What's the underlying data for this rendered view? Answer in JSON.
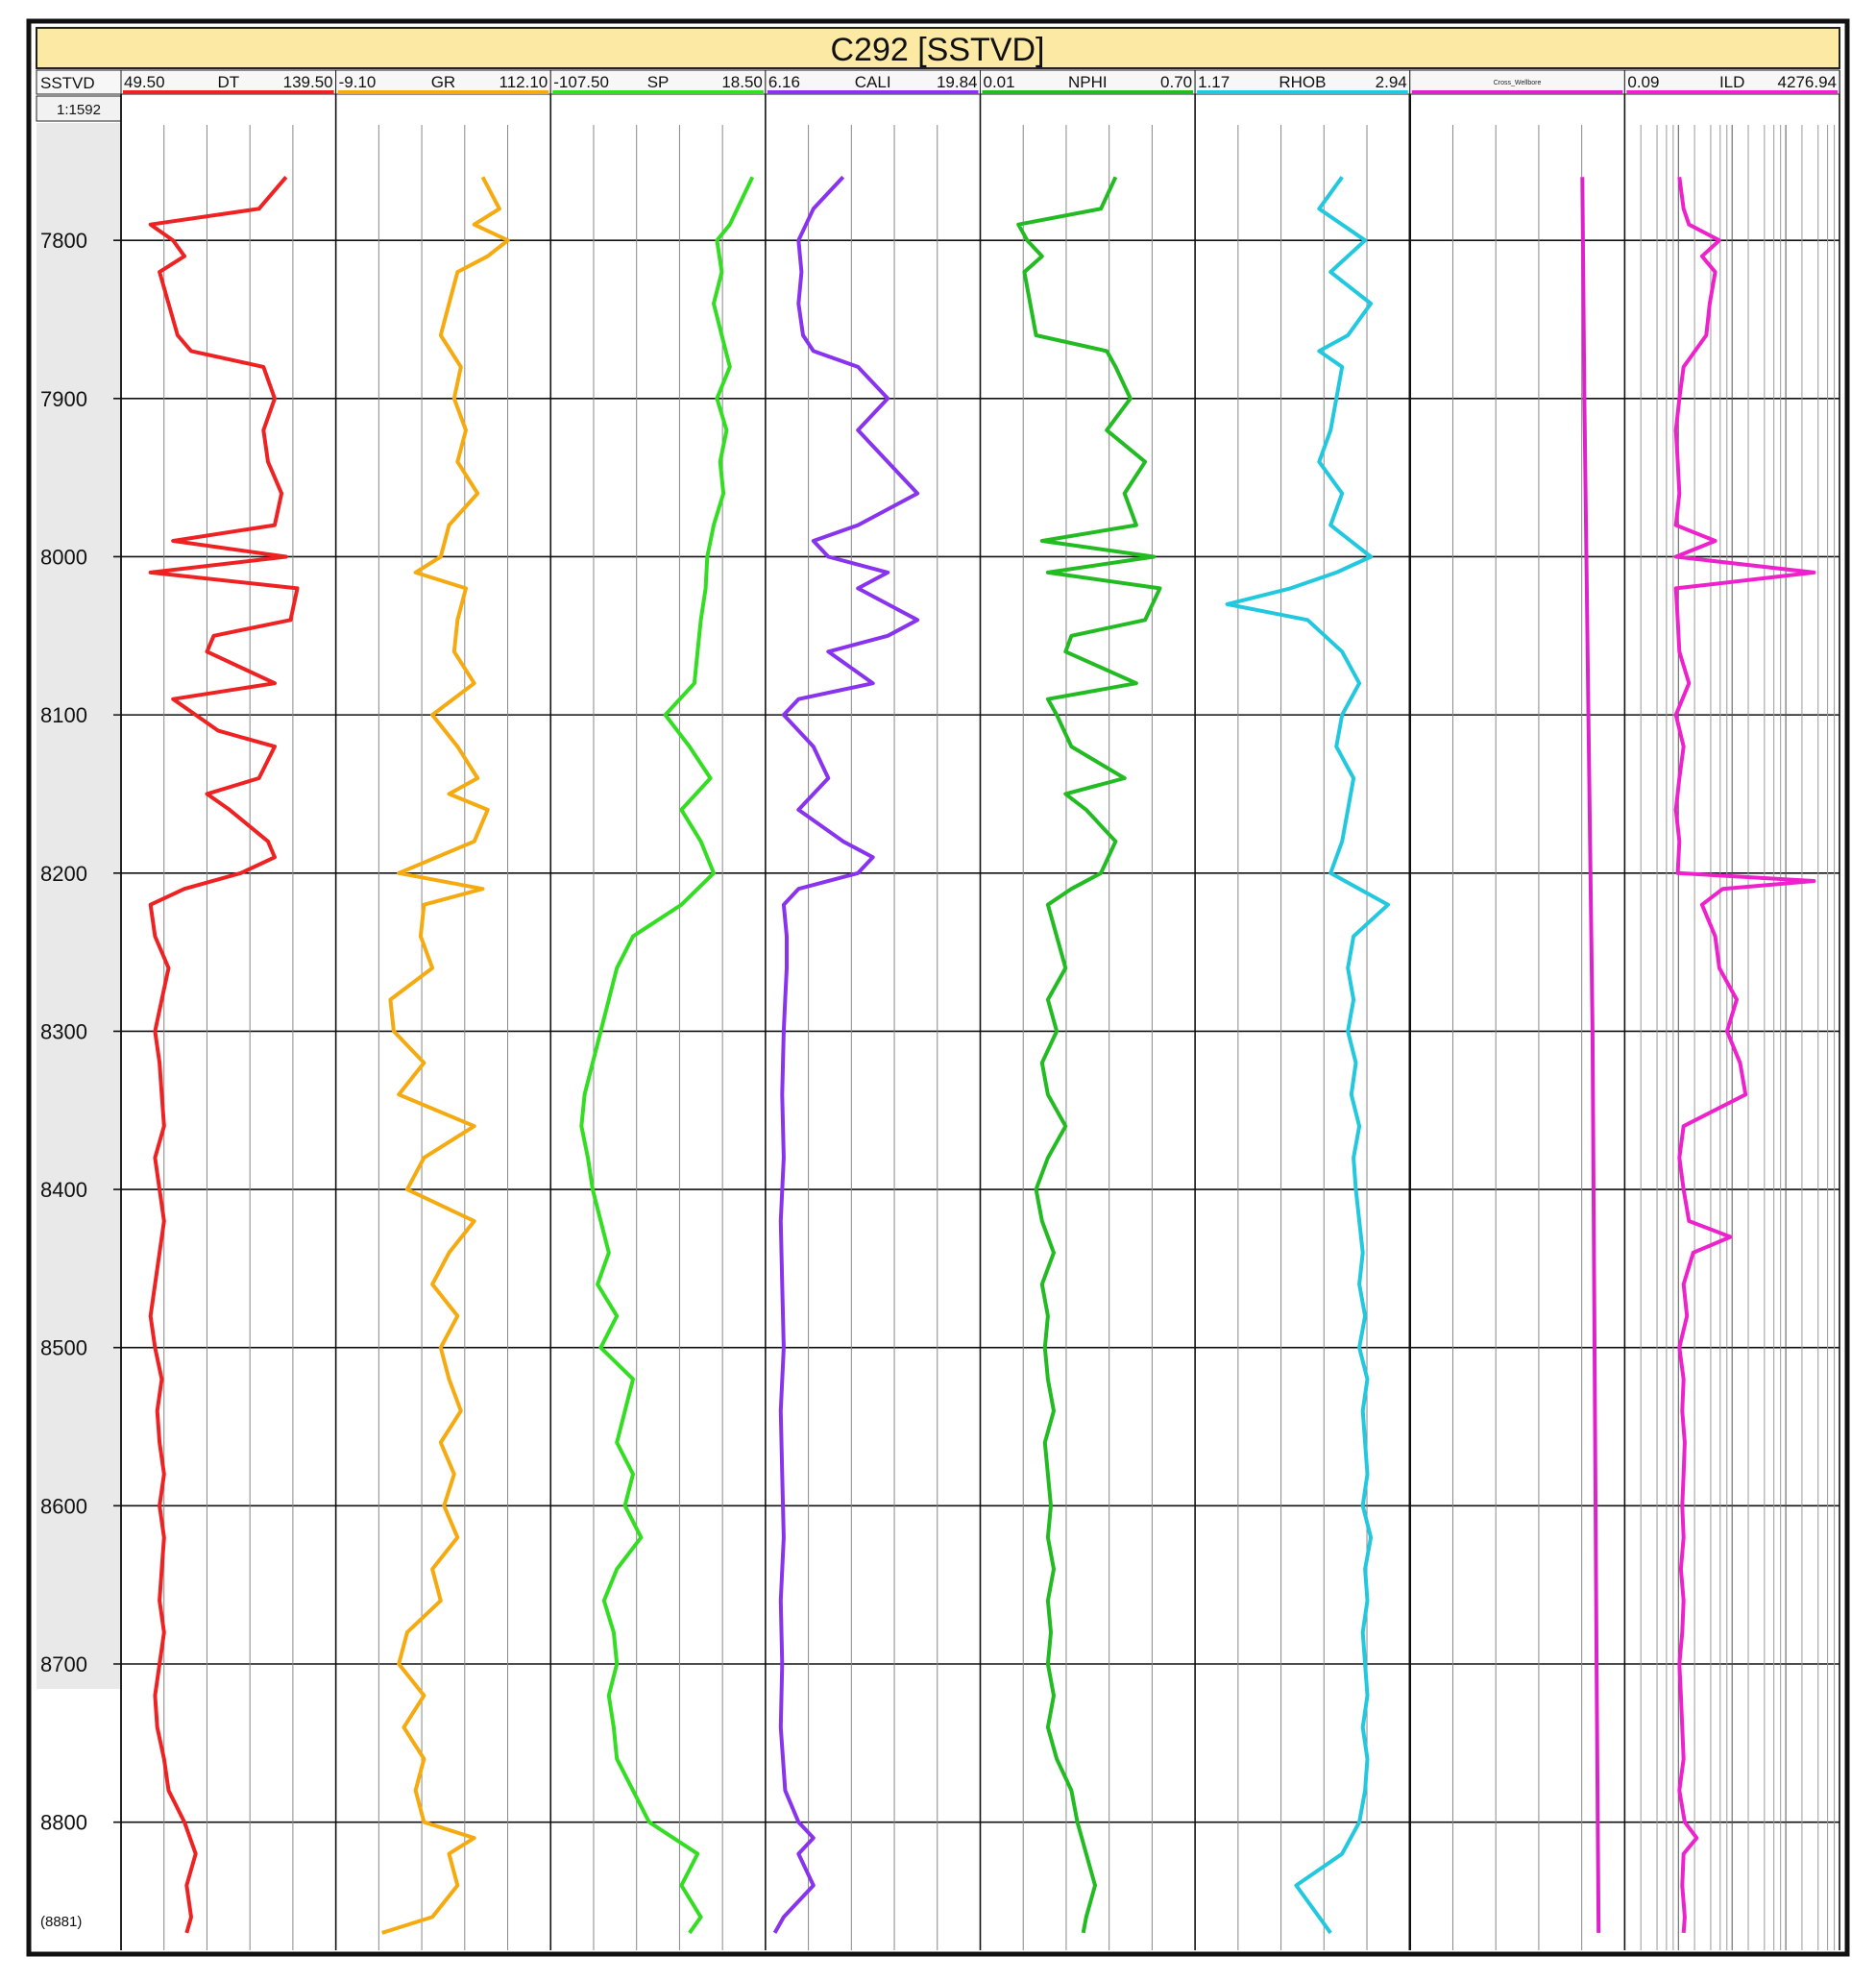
{
  "title": "C292 [SSTVD]",
  "depth_track": {
    "label": "SSTVD",
    "scale": "1:1592",
    "bottom_label": "(8881)",
    "ticks": [
      7800,
      7900,
      8000,
      8100,
      8200,
      8300,
      8400,
      8500,
      8600,
      8700,
      8800
    ]
  },
  "chart_data": {
    "type": "line",
    "title": "C292 [SSTVD]",
    "ylabel": "SSTVD",
    "ylim": [
      7727,
      8881
    ],
    "y_inverted": true,
    "grid": true,
    "tracks": [
      {
        "name": "DT",
        "min_label": "49.50",
        "max_label": "139.50",
        "min": 49.5,
        "max": 139.5,
        "color": "#ee2222",
        "scale": "linear",
        "depth": [
          7760,
          7780,
          7790,
          7800,
          7810,
          7820,
          7840,
          7860,
          7870,
          7880,
          7900,
          7920,
          7940,
          7960,
          7980,
          7990,
          8000,
          8010,
          8020,
          8040,
          8050,
          8060,
          8080,
          8090,
          8100,
          8110,
          8120,
          8140,
          8150,
          8160,
          8180,
          8190,
          8200,
          8210,
          8220,
          8240,
          8260,
          8280,
          8300,
          8320,
          8340,
          8360,
          8380,
          8400,
          8420,
          8440,
          8460,
          8480,
          8500,
          8520,
          8540,
          8560,
          8580,
          8600,
          8620,
          8640,
          8660,
          8680,
          8700,
          8720,
          8740,
          8760,
          8780,
          8800,
          8820,
          8840,
          8860,
          8870
        ],
        "values": [
          120,
          108,
          60,
          70,
          75,
          64,
          68,
          72,
          78,
          110,
          115,
          110,
          112,
          118,
          115,
          70,
          120,
          60,
          125,
          122,
          88,
          85,
          115,
          70,
          80,
          90,
          115,
          108,
          85,
          95,
          112,
          115,
          100,
          75,
          60,
          62,
          68,
          65,
          62,
          64,
          65,
          66,
          62,
          64,
          66,
          64,
          62,
          60,
          62,
          65,
          63,
          64,
          66,
          64,
          66,
          65,
          64,
          66,
          64,
          62,
          63,
          66,
          68,
          75,
          80,
          76,
          78,
          76
        ]
      },
      {
        "name": "GR",
        "min_label": "-9.10",
        "max_label": "112.10",
        "min": -9.1,
        "max": 112.1,
        "color": "#f5aa10",
        "scale": "linear",
        "depth": [
          7760,
          7780,
          7790,
          7800,
          7810,
          7820,
          7840,
          7860,
          7880,
          7900,
          7920,
          7940,
          7960,
          7980,
          8000,
          8010,
          8020,
          8040,
          8060,
          8080,
          8100,
          8120,
          8140,
          8150,
          8160,
          8180,
          8200,
          8210,
          8220,
          8240,
          8260,
          8280,
          8300,
          8320,
          8340,
          8360,
          8380,
          8400,
          8420,
          8440,
          8460,
          8480,
          8500,
          8520,
          8540,
          8560,
          8580,
          8600,
          8620,
          8640,
          8660,
          8680,
          8700,
          8720,
          8740,
          8760,
          8780,
          8800,
          8810,
          8820,
          8840,
          8860,
          8870
        ],
        "values": [
          75,
          85,
          70,
          90,
          78,
          60,
          55,
          50,
          62,
          58,
          65,
          60,
          72,
          55,
          50,
          35,
          65,
          60,
          58,
          70,
          45,
          60,
          72,
          55,
          78,
          70,
          25,
          75,
          40,
          38,
          45,
          20,
          22,
          40,
          25,
          70,
          40,
          30,
          70,
          55,
          45,
          60,
          50,
          55,
          62,
          50,
          58,
          52,
          60,
          45,
          50,
          30,
          25,
          40,
          28,
          40,
          35,
          40,
          70,
          55,
          60,
          45,
          15
        ]
      },
      {
        "name": "SP",
        "min_label": "-107.50",
        "max_label": "18.50",
        "min": -107.5,
        "max": 18.5,
        "color": "#33dd22",
        "scale": "linear",
        "depth": [
          7760,
          7790,
          7800,
          7820,
          7840,
          7860,
          7880,
          7900,
          7920,
          7940,
          7960,
          7980,
          8000,
          8020,
          8040,
          8060,
          8080,
          8100,
          8120,
          8140,
          8160,
          8180,
          8200,
          8220,
          8240,
          8260,
          8280,
          8300,
          8320,
          8340,
          8360,
          8380,
          8400,
          8420,
          8440,
          8460,
          8480,
          8500,
          8520,
          8540,
          8560,
          8580,
          8600,
          8620,
          8640,
          8660,
          8680,
          8700,
          8720,
          8740,
          8760,
          8780,
          8800,
          8820,
          8840,
          8860,
          8870
        ],
        "values": [
          14,
          0,
          -8,
          -5,
          -10,
          -5,
          0,
          -8,
          -2,
          -6,
          -4,
          -10,
          -14,
          -15,
          -18,
          -20,
          -22,
          -40,
          -25,
          -12,
          -30,
          -18,
          -10,
          -30,
          -60,
          -70,
          -75,
          -80,
          -85,
          -90,
          -92,
          -88,
          -85,
          -80,
          -75,
          -82,
          -70,
          -80,
          -60,
          -65,
          -70,
          -60,
          -65,
          -55,
          -70,
          -78,
          -72,
          -70,
          -75,
          -72,
          -70,
          -60,
          -50,
          -20,
          -30,
          -18,
          -25
        ]
      },
      {
        "name": "CALI",
        "min_label": "6.16",
        "max_label": "19.84",
        "min": 6.16,
        "max": 19.84,
        "color": "#8833ee",
        "scale": "linear",
        "depth": [
          7760,
          7780,
          7800,
          7820,
          7840,
          7860,
          7870,
          7880,
          7900,
          7920,
          7940,
          7960,
          7980,
          7990,
          8000,
          8010,
          8020,
          8040,
          8050,
          8060,
          8080,
          8090,
          8100,
          8120,
          8140,
          8160,
          8180,
          8190,
          8200,
          8210,
          8220,
          8240,
          8260,
          8280,
          8300,
          8340,
          8380,
          8420,
          8460,
          8500,
          8540,
          8580,
          8620,
          8660,
          8700,
          8740,
          8780,
          8800,
          8810,
          8820,
          8840,
          8860,
          8870
        ],
        "values": [
          11,
          9,
          8,
          8.2,
          8,
          8.3,
          9,
          12,
          14,
          12,
          14,
          16,
          12,
          9,
          10,
          14,
          12,
          16,
          14,
          10,
          13,
          8,
          7,
          9,
          10,
          8,
          11,
          13,
          12,
          8,
          7,
          7.2,
          7.2,
          7.1,
          7,
          6.9,
          7,
          6.8,
          6.9,
          7,
          6.8,
          6.9,
          7,
          6.8,
          6.9,
          6.8,
          7.1,
          8,
          9,
          8,
          9,
          7,
          6.4
        ]
      },
      {
        "name": "NPHI",
        "min_label": "0.01",
        "max_label": "0.70",
        "min": 0.01,
        "max": 0.7,
        "color": "#22bb22",
        "scale": "linear",
        "depth": [
          7760,
          7780,
          7790,
          7800,
          7810,
          7820,
          7840,
          7860,
          7870,
          7880,
          7900,
          7920,
          7940,
          7960,
          7980,
          7990,
          8000,
          8010,
          8020,
          8040,
          8050,
          8060,
          8080,
          8090,
          8100,
          8120,
          8140,
          8150,
          8160,
          8180,
          8200,
          8210,
          8220,
          8240,
          8260,
          8280,
          8300,
          8320,
          8340,
          8360,
          8380,
          8400,
          8420,
          8440,
          8460,
          8480,
          8500,
          8520,
          8540,
          8560,
          8580,
          8600,
          8620,
          8640,
          8660,
          8680,
          8700,
          8720,
          8740,
          8760,
          8780,
          8800,
          8820,
          8840,
          8860,
          8870
        ],
        "values": [
          0.45,
          0.4,
          0.12,
          0.15,
          0.2,
          0.14,
          0.16,
          0.18,
          0.42,
          0.45,
          0.5,
          0.42,
          0.55,
          0.48,
          0.52,
          0.2,
          0.58,
          0.22,
          0.6,
          0.55,
          0.3,
          0.28,
          0.52,
          0.22,
          0.25,
          0.3,
          0.48,
          0.28,
          0.35,
          0.45,
          0.4,
          0.3,
          0.22,
          0.25,
          0.28,
          0.22,
          0.25,
          0.2,
          0.22,
          0.28,
          0.22,
          0.18,
          0.2,
          0.24,
          0.2,
          0.22,
          0.21,
          0.22,
          0.24,
          0.21,
          0.22,
          0.23,
          0.22,
          0.24,
          0.22,
          0.23,
          0.22,
          0.24,
          0.22,
          0.25,
          0.3,
          0.32,
          0.35,
          0.38,
          0.35,
          0.34
        ]
      },
      {
        "name": "RHOB",
        "min_label": "1.17",
        "max_label": "2.94",
        "min": 1.17,
        "max": 2.94,
        "color": "#22c8dd",
        "scale": "linear",
        "depth": [
          7760,
          7780,
          7800,
          7820,
          7840,
          7860,
          7870,
          7880,
          7900,
          7920,
          7940,
          7960,
          7980,
          8000,
          8010,
          8020,
          8030,
          8040,
          8060,
          8080,
          8100,
          8120,
          8140,
          8160,
          8180,
          8200,
          8220,
          8240,
          8260,
          8280,
          8300,
          8320,
          8340,
          8360,
          8380,
          8400,
          8420,
          8440,
          8460,
          8480,
          8500,
          8520,
          8540,
          8560,
          8580,
          8600,
          8620,
          8640,
          8660,
          8680,
          8700,
          8720,
          8740,
          8760,
          8780,
          8800,
          8820,
          8840,
          8860,
          8870
        ],
        "values": [
          2.4,
          2.2,
          2.6,
          2.3,
          2.65,
          2.45,
          2.2,
          2.4,
          2.35,
          2.3,
          2.2,
          2.4,
          2.3,
          2.65,
          2.35,
          1.95,
          1.4,
          2.1,
          2.4,
          2.55,
          2.4,
          2.35,
          2.5,
          2.45,
          2.4,
          2.3,
          2.8,
          2.5,
          2.45,
          2.5,
          2.45,
          2.52,
          2.48,
          2.55,
          2.5,
          2.52,
          2.55,
          2.58,
          2.55,
          2.6,
          2.55,
          2.62,
          2.58,
          2.6,
          2.62,
          2.58,
          2.65,
          2.6,
          2.62,
          2.58,
          2.6,
          2.62,
          2.58,
          2.62,
          2.6,
          2.55,
          2.4,
          2.0,
          2.2,
          2.3
        ]
      },
      {
        "name": "Cross_Wellbore",
        "min_label": "",
        "max_label": "",
        "min": 0,
        "max": 1,
        "color": "#dd22cc",
        "scale": "linear",
        "depth": [
          7760,
          7900,
          8100,
          8300,
          8500,
          8700,
          8870
        ],
        "values": [
          0.82,
          0.83,
          0.85,
          0.87,
          0.88,
          0.89,
          0.9
        ]
      },
      {
        "name": "ILD",
        "min_label": "0.09",
        "max_label": "4276.94",
        "min": 0.09,
        "max": 4276.94,
        "color": "#ee22cc",
        "scale": "log",
        "depth": [
          7760,
          7780,
          7790,
          7800,
          7810,
          7820,
          7840,
          7860,
          7880,
          7900,
          7920,
          7940,
          7960,
          7980,
          7990,
          8000,
          8010,
          8020,
          8040,
          8060,
          8080,
          8100,
          8120,
          8140,
          8160,
          8180,
          8200,
          8205,
          8210,
          8220,
          8240,
          8260,
          8280,
          8300,
          8320,
          8340,
          8360,
          8380,
          8400,
          8420,
          8430,
          8440,
          8460,
          8480,
          8500,
          8520,
          8540,
          8560,
          8580,
          8600,
          8620,
          8640,
          8660,
          8680,
          8700,
          8720,
          8740,
          8760,
          8780,
          8800,
          8810,
          8820,
          8840,
          8860,
          8870
        ],
        "values": [
          1.2,
          1.5,
          2,
          10,
          4,
          8,
          6,
          5,
          1.5,
          1.2,
          1.0,
          1.1,
          1.2,
          1.0,
          8,
          1.0,
          1500,
          1.0,
          1.1,
          1.2,
          2,
          1.0,
          1.5,
          1.2,
          1.0,
          1.2,
          1.1,
          1500,
          12,
          4,
          8,
          10,
          25,
          15,
          30,
          40,
          1.5,
          1.2,
          1.5,
          2,
          18,
          2.5,
          1.5,
          1.8,
          1.2,
          1.5,
          1.4,
          1.6,
          1.5,
          1.4,
          1.5,
          1.3,
          1.5,
          1.4,
          1.2,
          1.3,
          1.4,
          1.5,
          1.2,
          1.6,
          3,
          1.5,
          1.4,
          1.6,
          1.5
        ]
      }
    ]
  }
}
